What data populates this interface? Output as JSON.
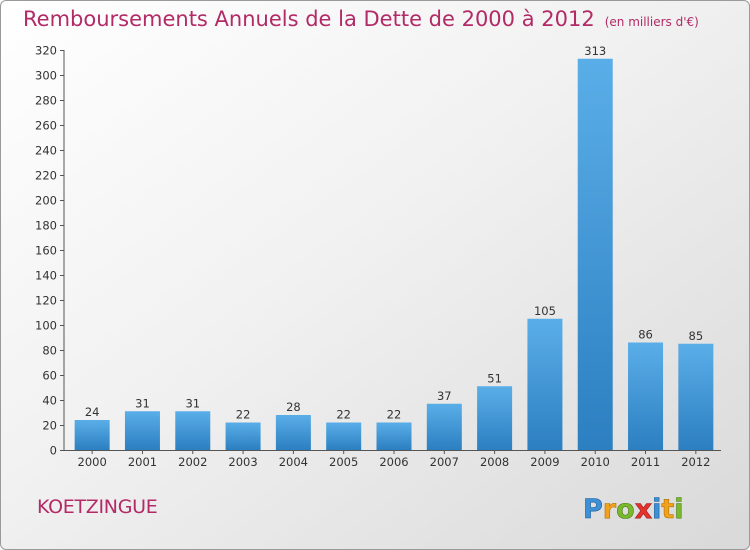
{
  "header": {
    "title": "Remboursements Annuels de la Dette de 2000 à 2012",
    "unit": "(en milliers d'€)"
  },
  "footer": {
    "commune": "KOETZINGUE",
    "brand": "Proxiti"
  },
  "colors": {
    "title": "#b22a66",
    "bar_top": "#5aaee8",
    "bar_bottom": "#2c7fc0"
  },
  "chart_data": {
    "type": "bar",
    "title": "Remboursements Annuels de la Dette de 2000 à 2012",
    "categories": [
      "2000",
      "2001",
      "2002",
      "2003",
      "2004",
      "2005",
      "2006",
      "2007",
      "2008",
      "2009",
      "2010",
      "2011",
      "2012"
    ],
    "values": [
      24,
      31,
      31,
      22,
      28,
      22,
      22,
      37,
      51,
      105,
      313,
      86,
      85
    ],
    "ylim": [
      0,
      320
    ],
    "yticks": [
      0,
      20,
      40,
      60,
      80,
      100,
      120,
      140,
      160,
      180,
      200,
      220,
      240,
      260,
      280,
      300,
      320
    ],
    "grid": false,
    "data_labels": true
  }
}
